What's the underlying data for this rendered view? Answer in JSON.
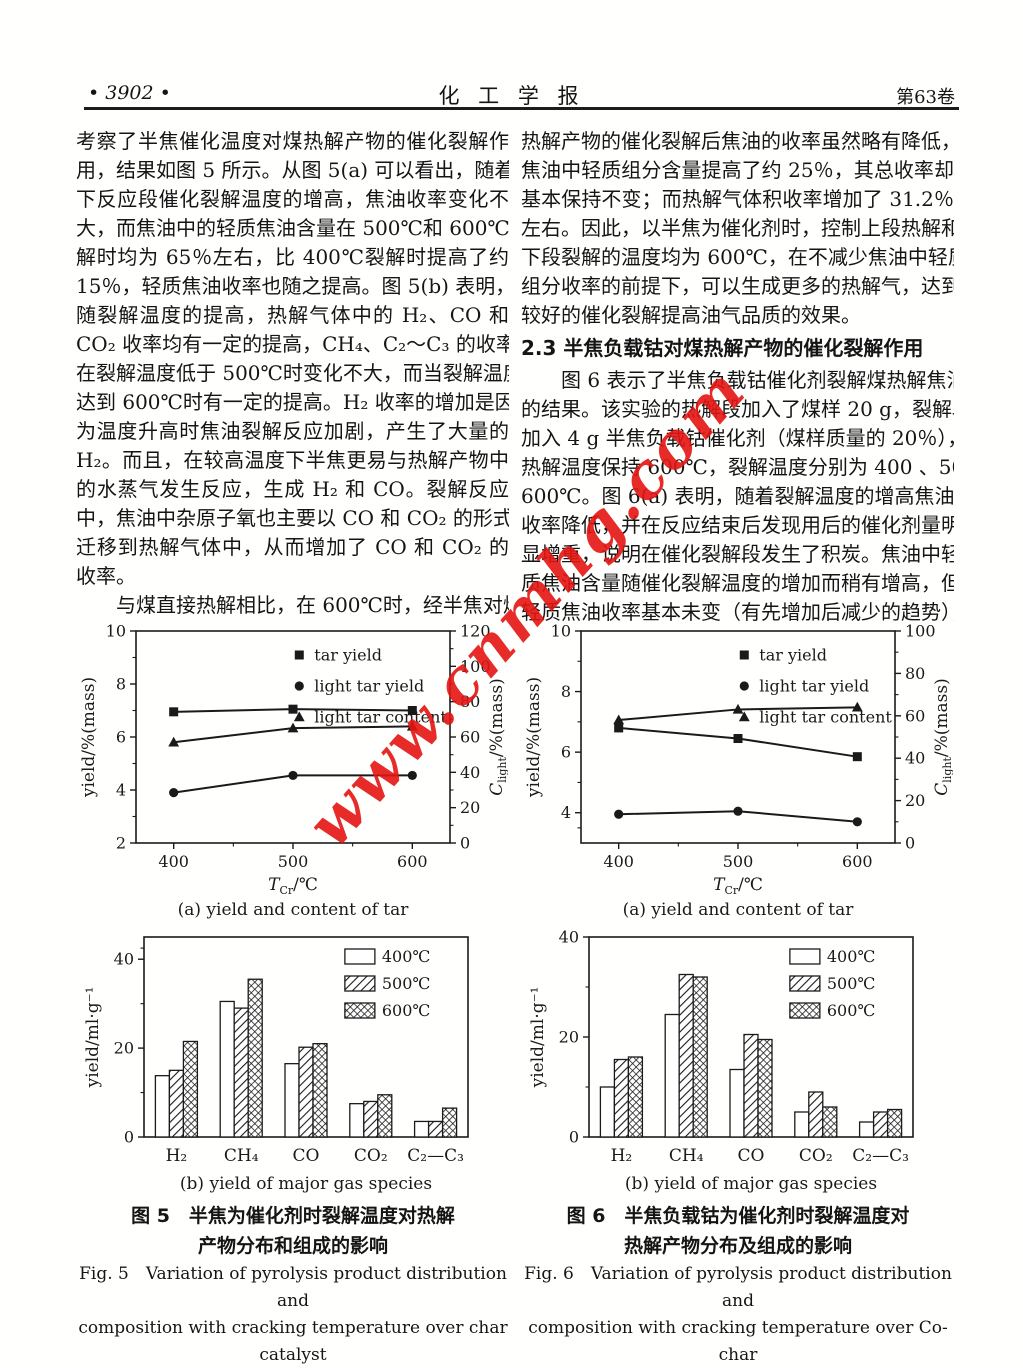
{
  "header": {
    "page_number": "• 3902 •",
    "journal": "化 工 学 报",
    "volume": "第63卷"
  },
  "watermark": "www.cnmhg.com",
  "left_column": {
    "para1_lines": [
      "考察了半焦催化温度对煤热解产物的催化裂解作",
      "用，结果如图 5 所示。从图 5(a) 可以看出，随着",
      "下反应段催化裂解温度的增高，焦油收率变化不",
      "大，而焦油中的轻质焦油含量在 500℃和 600℃裂",
      "解时均为 65％左右，比 400℃裂解时提高了约",
      "15％，轻质焦油收率也随之提高。图 5(b) 表明，",
      "随裂解温度的提高，热解气体中的 H₂、CO 和",
      "CO₂ 收率均有一定的提高，CH₄、C₂～C₃ 的收率",
      "在裂解温度低于 500℃时变化不大，而当裂解温度",
      "达到 600℃时有一定的提高。H₂ 收率的增加是因",
      "为温度升高时焦油裂解反应加剧，产生了大量的",
      "H₂。而且，在较高温度下半焦更易与热解产物中",
      "的水蒸气发生反应，生成 H₂ 和 CO。裂解反应",
      "中，焦油中杂原子氧也主要以 CO 和 CO₂ 的形式",
      "迁移到热解气体中，从而增加了 CO 和 CO₂ 的",
      "收率。"
    ],
    "para2_lines": [
      "与煤直接热解相比，在 600℃时，经半焦对煤"
    ]
  },
  "right_column": {
    "para1_lines": [
      "热解产物的催化裂解后焦油的收率虽然略有降低，",
      "焦油中轻质组分含量提高了约 25％，其总收率却",
      "基本保持不变；而热解气体积收率增加了 31.2％",
      "左右。因此，以半焦为催化剂时，控制上段热解和",
      "下段裂解的温度均为 600℃，在不减少焦油中轻质",
      "组分收率的前提下，可以生成更多的热解气，达到",
      "较好的催化裂解提高油气品质的效果。"
    ],
    "heading": "2.3  半焦负载钴对煤热解产物的催化裂解作用",
    "para2_lines": [
      "图 6 表示了半焦负载钴催化剂裂解煤热解焦油",
      "的结果。该实验的热解段加入了煤样 20 g，裂解段",
      "加入 4 g 半焦负载钴催化剂（煤样质量的 20％），",
      "热解温度保持 600℃，裂解温度分别为 400 、500 、",
      "600℃。图 6(a) 表明，随着裂解温度的增高焦油",
      "收率降低，并在反应结束后发现用后的催化剂量明",
      "显增重，说明在催化裂解段发生了积炭。焦油中轻",
      "质焦油含量随催化裂解温度的增加而稍有增高，但",
      "轻质焦油收率基本未变（有先增加后减少的趋势），"
    ]
  },
  "figure5": {
    "caption_cn_1": "图 5　半焦为催化剂时裂解温度对热解",
    "caption_cn_2": "产物分布和组成的影响",
    "caption_en_1": "Fig. 5　Variation of pyrolysis product distribution and",
    "caption_en_2": "composition with cracking temperature over char catalyst"
  },
  "figure6": {
    "caption_cn_1": "图 6　半焦负载钴为催化剂时裂解温度对",
    "caption_cn_2": "热解产物分布及组成的影响",
    "caption_en_1": "Fig. 6　Variation of pyrolysis product distribution and",
    "caption_en_2": "composition with cracking temperature over Co-char"
  },
  "chart_data": [
    {
      "id": "fig5a",
      "type": "line",
      "x": [
        400,
        500,
        600
      ],
      "xlabel": {
        "main": "T",
        "sub": "Cr",
        "suffix": "/℃"
      },
      "ylabel_left": "yield/%(mass)",
      "ylabel_right": {
        "main": "C",
        "sub": "light",
        "suffix": "/%(mass)"
      },
      "ylim_left": [
        2,
        10
      ],
      "yticks_left": [
        2,
        4,
        6,
        8,
        10
      ],
      "ylim_right": [
        0,
        120
      ],
      "yticks_right": [
        0,
        20,
        40,
        60,
        80,
        100,
        120
      ],
      "grid": false,
      "legend_position": "inside-top-right",
      "caption": "(a) yield and content of tar",
      "series": [
        {
          "name": "tar yield",
          "marker": "square",
          "axis": "left",
          "values": [
            6.95,
            7.05,
            7.0
          ]
        },
        {
          "name": "light tar yield",
          "marker": "circle",
          "axis": "left",
          "values": [
            3.9,
            4.55,
            4.55
          ]
        },
        {
          "name": "light tar content",
          "marker": "triangle",
          "axis": "right",
          "values": [
            57,
            65,
            66
          ]
        }
      ]
    },
    {
      "id": "fig5b",
      "type": "bar",
      "categories": [
        "H₂",
        "CH₄",
        "CO",
        "CO₂",
        "C₂—C₃"
      ],
      "ylabel": "yield/ml·g⁻¹",
      "ylim": [
        0,
        45
      ],
      "yticks": [
        0,
        20,
        40
      ],
      "grid": false,
      "legend_position": "inside-top-right",
      "caption": "(b) yield of major gas species",
      "series": [
        {
          "name": "400℃",
          "fill": "plain",
          "values": [
            13.8,
            30.5,
            16.5,
            7.5,
            3.5
          ]
        },
        {
          "name": "500℃",
          "fill": "diagonal-hatch",
          "values": [
            15,
            29,
            20.2,
            8,
            3.5
          ]
        },
        {
          "name": "600℃",
          "fill": "cross-hatch",
          "values": [
            21.5,
            35.5,
            21,
            9.5,
            6.5
          ]
        }
      ]
    },
    {
      "id": "fig6a",
      "type": "line",
      "x": [
        400,
        500,
        600
      ],
      "xlabel": {
        "main": "T",
        "sub": "Cr",
        "suffix": "/℃"
      },
      "ylabel_left": "yield/%(mass)",
      "ylabel_right": {
        "main": "C",
        "sub": "light",
        "suffix": "/%(mass)"
      },
      "ylim_left": [
        3,
        10
      ],
      "yticks_left": [
        4,
        6,
        8,
        10
      ],
      "ylim_right": [
        0,
        100
      ],
      "yticks_right": [
        0,
        20,
        40,
        60,
        80,
        100
      ],
      "grid": false,
      "legend_position": "inside-top-right",
      "caption": "(a) yield and content of tar",
      "series": [
        {
          "name": "tar yield",
          "marker": "square",
          "axis": "left",
          "values": [
            6.8,
            6.45,
            5.85
          ]
        },
        {
          "name": "light tar yield",
          "marker": "circle",
          "axis": "left",
          "values": [
            3.95,
            4.05,
            3.7
          ]
        },
        {
          "name": "light tar content",
          "marker": "triangle",
          "axis": "right",
          "values": [
            58,
            63,
            64
          ]
        }
      ]
    },
    {
      "id": "fig6b",
      "type": "bar",
      "categories": [
        "H₂",
        "CH₄",
        "CO",
        "CO₂",
        "C₂—C₃"
      ],
      "ylabel": "yield/ml·g⁻¹",
      "ylim": [
        0,
        40
      ],
      "yticks": [
        0,
        20,
        40
      ],
      "grid": false,
      "legend_position": "inside-top-right",
      "caption": "(b) yield of major gas species",
      "series": [
        {
          "name": "400℃",
          "fill": "plain",
          "values": [
            10,
            24.5,
            13.5,
            5,
            3
          ]
        },
        {
          "name": "500℃",
          "fill": "diagonal-hatch",
          "values": [
            15.5,
            32.5,
            20.5,
            9,
            5
          ]
        },
        {
          "name": "600℃",
          "fill": "cross-hatch",
          "values": [
            16,
            32,
            19.5,
            6,
            5.5
          ]
        }
      ]
    }
  ]
}
